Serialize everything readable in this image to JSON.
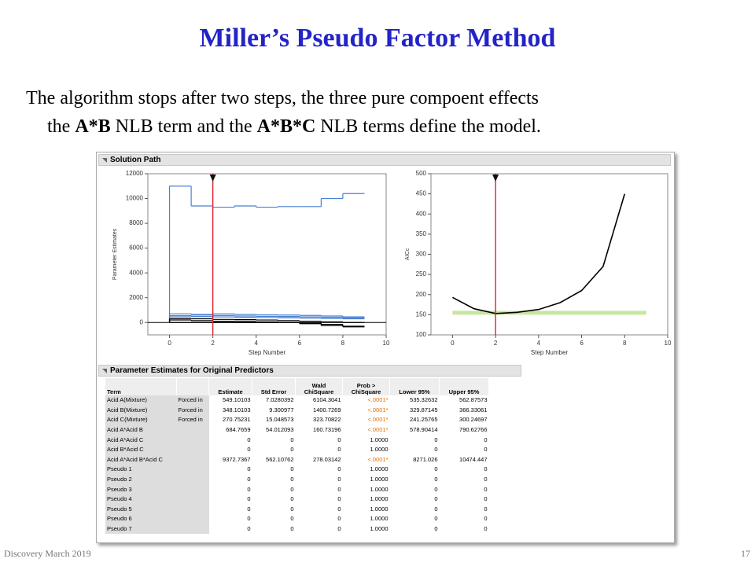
{
  "header": {
    "title": "Miller’s Pseudo Factor Method"
  },
  "body": {
    "lines": [
      [
        "The algorithm stops after two steps, the three pure compoent effects"
      ],
      [
        "the ",
        "A*B",
        " NLB term and the ",
        "A*B*C",
        " NLB terms define the model."
      ]
    ]
  },
  "panel": {
    "title": "Solution Path",
    "charts": [
      {
        "type": "step",
        "ylabel": "Parameter Estimates",
        "xlabel": "Step Number",
        "xlim": [
          -1,
          10
        ],
        "ylim": [
          -1000,
          12000
        ],
        "xticks": [
          0,
          2,
          4,
          6,
          8,
          10
        ],
        "yticks": [
          0,
          2000,
          4000,
          6000,
          8000,
          10000,
          12000
        ],
        "selected_step": 2,
        "zero_line": 0,
        "series": [
          {
            "color": "#4a7fd4",
            "values": [
              11000,
              9400,
              9300,
              9400,
              9300,
              9350,
              9350,
              10000,
              10400
            ]
          },
          {
            "color": "#4a7fd4",
            "values": [
              700,
              650,
              700,
              650,
              620,
              600,
              570,
              520,
              450
            ]
          },
          {
            "color": "#4a7fd4",
            "values": [
              550,
              600,
              560,
              520,
              500,
              480,
              450,
              420,
              380
            ]
          },
          {
            "color": "#4a7fd4",
            "values": [
              450,
              480,
              450,
              420,
              400,
              380,
              350,
              320,
              300
            ]
          },
          {
            "color": "#000000",
            "values": [
              300,
              300,
              250,
              230,
              200,
              150,
              100,
              50,
              0
            ]
          },
          {
            "color": "#000000",
            "values": [
              200,
              150,
              100,
              80,
              50,
              0,
              -100,
              -250,
              -300
            ]
          },
          {
            "color": "#000000",
            "values": [
              0,
              0,
              0,
              0,
              0,
              0,
              -50,
              -150,
              -350
            ]
          }
        ]
      },
      {
        "type": "line",
        "ylabel": "AICc",
        "xlabel": "Step Number",
        "xlim": [
          -1,
          10
        ],
        "ylim": [
          100,
          500
        ],
        "xticks": [
          0,
          2,
          4,
          6,
          8,
          10
        ],
        "yticks": [
          100,
          150,
          200,
          250,
          300,
          350,
          400,
          450,
          500
        ],
        "selected_step": 2,
        "band_value": 155,
        "series": [
          {
            "color": "#000000",
            "x": [
              0,
              1,
              2,
              3,
              4,
              5,
              6,
              7,
              8
            ],
            "values": [
              193,
              165,
              153,
              156,
              163,
              180,
              210,
              270,
              450
            ]
          }
        ]
      }
    ]
  },
  "table": {
    "title": "Parameter Estimates for Original Predictors",
    "headers": [
      "Term",
      "Estimate",
      "Std Error",
      "Wald ChiSquare",
      "Prob > ChiSquare",
      "Lower 95%",
      "Upper 95%"
    ],
    "rows": [
      {
        "term": "Acid A(Mixture)",
        "forced": "Forced in",
        "cells": [
          "549.10103",
          "7.0280392",
          "6104.3041",
          "<.0001*",
          "535.32632",
          "562.87573"
        ]
      },
      {
        "term": "Acid B(Mixture)",
        "forced": "Forced in",
        "cells": [
          "348.10103",
          "9.300977",
          "1400.7269",
          "<.0001*",
          "329.87145",
          "366.33061"
        ]
      },
      {
        "term": "Acid C(Mixture)",
        "forced": "Forced in",
        "cells": [
          "270.75231",
          "15.048573",
          "323.70822",
          "<.0001*",
          "241.25765",
          "300.24697"
        ]
      },
      {
        "term": "Acid A*Acid B",
        "cells": [
          "684.7659",
          "54.012093",
          "160.73196",
          "<.0001*",
          "578.90414",
          "790.62766"
        ]
      },
      {
        "term": "Acid A*Acid C",
        "cells": [
          "0",
          "0",
          "0",
          "1.0000",
          "0",
          "0"
        ]
      },
      {
        "term": "Acid B*Acid C",
        "cells": [
          "0",
          "0",
          "0",
          "1.0000",
          "0",
          "0"
        ]
      },
      {
        "term": "Acid A*Acid B*Acid C",
        "cells": [
          "9372.7367",
          "562.10762",
          "278.03142",
          "<.0001*",
          "8271.026",
          "10474.447"
        ]
      },
      {
        "term": "Pseudo 1",
        "cells": [
          "0",
          "0",
          "0",
          "1.0000",
          "0",
          "0"
        ]
      },
      {
        "term": "Pseudo 2",
        "cells": [
          "0",
          "0",
          "0",
          "1.0000",
          "0",
          "0"
        ]
      },
      {
        "term": "Pseudo 3",
        "cells": [
          "0",
          "0",
          "0",
          "1.0000",
          "0",
          "0"
        ]
      },
      {
        "term": "Pseudo 4",
        "cells": [
          "0",
          "0",
          "0",
          "1.0000",
          "0",
          "0"
        ]
      },
      {
        "term": "Pseudo 5",
        "cells": [
          "0",
          "0",
          "0",
          "1.0000",
          "0",
          "0"
        ]
      },
      {
        "term": "Pseudo 6",
        "cells": [
          "0",
          "0",
          "0",
          "1.0000",
          "0",
          "0"
        ]
      },
      {
        "term": "Pseudo 7",
        "cells": [
          "0",
          "0",
          "0",
          "1.0000",
          "0",
          "0"
        ]
      }
    ]
  },
  "footer": {
    "left": "Discovery March 2019",
    "right": "17"
  }
}
